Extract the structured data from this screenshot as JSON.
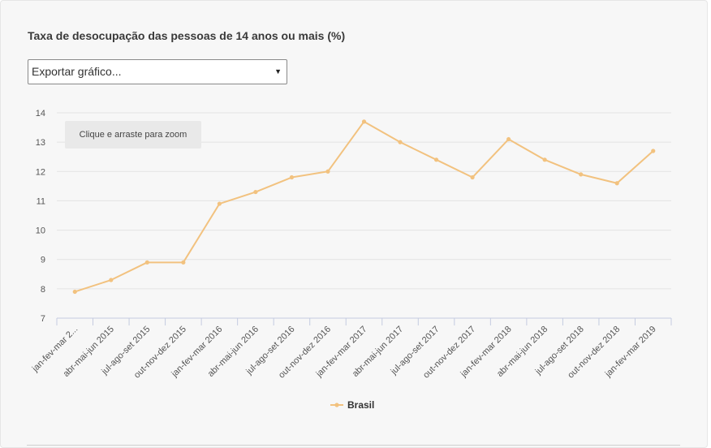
{
  "title": "Taxa de desocupação das pessoas de 14 anos ou mais (%)",
  "export_select": {
    "label": "Exportar gráfico...",
    "arrow": "▼"
  },
  "zoom_hint": "Clique e arraste para zoom",
  "colors": {
    "series": "#f2c27f",
    "grid": "#e3e3e3",
    "axis": "#c4cbe0",
    "text": "#555555"
  },
  "chart_data": {
    "type": "line",
    "title": "Taxa de desocupação das pessoas de 14 anos ou mais (%)",
    "categories": [
      "jan-fev-mar 2...",
      "abr-mai-jun 2015",
      "jul-ago-set 2015",
      "out-nov-dez 2015",
      "jan-fev-mar 2016",
      "abr-mai-jun 2016",
      "jul-ago-set 2016",
      "out-nov-dez 2016",
      "jan-fev-mar 2017",
      "abr-mai-jun 2017",
      "jul-ago-set 2017",
      "out-nov-dez 2017",
      "jan-fev-mar 2018",
      "abr-mai-jun 2018",
      "jul-ago-set 2018",
      "out-nov-dez 2018",
      "jan-fev-mar 2019"
    ],
    "series": [
      {
        "name": "Brasil",
        "values": [
          7.9,
          8.3,
          8.9,
          8.9,
          10.9,
          11.3,
          11.8,
          12.0,
          13.7,
          13.0,
          12.4,
          11.8,
          13.1,
          12.4,
          11.9,
          11.6,
          12.7
        ]
      }
    ],
    "yticks": [
      7,
      8,
      9,
      10,
      11,
      12,
      13,
      14
    ],
    "ylim": [
      7,
      14
    ],
    "grid": true,
    "legend_position": "bottom-center"
  }
}
